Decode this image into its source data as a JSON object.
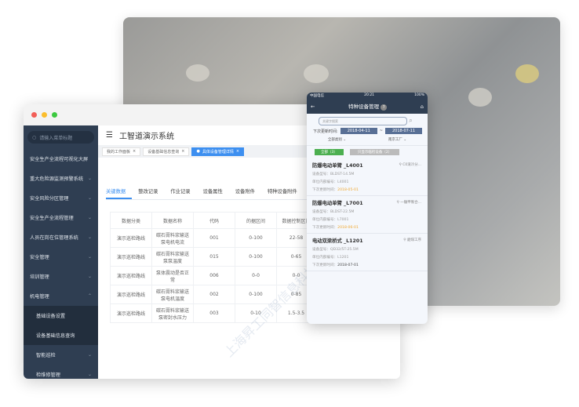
{
  "window": {
    "app_title": "工智道演示系统",
    "search_placeholder": "请输入菜单标题",
    "menu": [
      {
        "label": "安全生产全流程可视化大屏",
        "chev": ""
      },
      {
        "label": "重大危险源监测预警系统",
        "chev": "⌄"
      },
      {
        "label": "安全风险分区管理",
        "chev": "⌄"
      },
      {
        "label": "安全生产全流程管理",
        "chev": "⌄"
      },
      {
        "label": "人员在岗在位管理系统",
        "chev": "⌄"
      },
      {
        "label": "安全管理",
        "chev": "⌄"
      },
      {
        "label": "培训管理",
        "chev": "⌄"
      },
      {
        "label": "机电管理",
        "chev": "⌃"
      },
      {
        "label": "基础设备设置",
        "chev": ""
      },
      {
        "label": "设备基础信息查询",
        "chev": ""
      },
      {
        "label": "智能巡检",
        "chev": "⌄"
      },
      {
        "label": "检维修管理",
        "chev": "⌄"
      }
    ],
    "open_tabs": [
      {
        "label": "我的工作面板"
      },
      {
        "label": "设备基础信息查询"
      },
      {
        "label": "具体设备管理详情"
      }
    ],
    "detail_tabs": [
      "关键数据",
      "整改记录",
      "作业记录",
      "设备属性",
      "设备附件",
      "特种设备附件"
    ],
    "table": {
      "headers": [
        "数据分类",
        "数据名称",
        "代码",
        "的据区间",
        "数据控制区间"
      ],
      "rows": [
        [
          "演示巡检路线",
          "碳石膏料浆输送泵电机电流",
          "001",
          "0-100",
          "22-58"
        ],
        [
          "演示巡检路线",
          "碳石膏料浆输送泵泵温度",
          "015",
          "0-100",
          "0-65"
        ],
        [
          "演示巡检路线",
          "泵体震动是否正常",
          "006",
          "0-0",
          "0-0"
        ],
        [
          "演示巡检路线",
          "碳石膏料浆输送泵电机温度",
          "002",
          "0-100",
          "0-85"
        ],
        [
          "演示巡检路线",
          "碳石膏料浆输送泵密封水压力",
          "003",
          "0-10",
          "1.5-3.5"
        ]
      ]
    },
    "watermark": "上海昇工同智信息科技有限公司"
  },
  "phone": {
    "carrier": "中国电信",
    "time": "20:21",
    "battery": "100%",
    "title": "特种设备管理",
    "help": "?",
    "search_placeholder": "关键字搜索",
    "date_label": "下次更新时间:",
    "date_from": "2018-04-11",
    "date_sep": "~",
    "date_to": "2018-07-11",
    "filter1": "全部类别",
    "filter2": "南京工厂",
    "btn_all": "全部（3）",
    "btn_only": "只显示临检设备（2）",
    "items": [
      {
        "name": "防爆电动单臂 _L4001",
        "loc": "C0滚冷分...",
        "model": "设备型号：BLDST-14.5M",
        "code": "单位内部编号：L4001",
        "next_label": "下次更新时间：",
        "next": "2018-05-01",
        "warn": true
      },
      {
        "name": "防爆电动单臂 _L7001",
        "loc": "一髓甲製合...",
        "model": "设备型号：BLDST-22.5M",
        "code": "单位内部编号：L7001",
        "next_label": "下次更新时间：",
        "next": "2018-06-01",
        "warn": true
      },
      {
        "name": "电动双梁桥式 _L1201",
        "loc": "磨煤工序",
        "model": "设备型号：QD32/5T-25.5M",
        "code": "单位内部编号：L1201",
        "next_label": "下次更新时间：",
        "next": "2018-07-01",
        "warn": false
      }
    ]
  }
}
